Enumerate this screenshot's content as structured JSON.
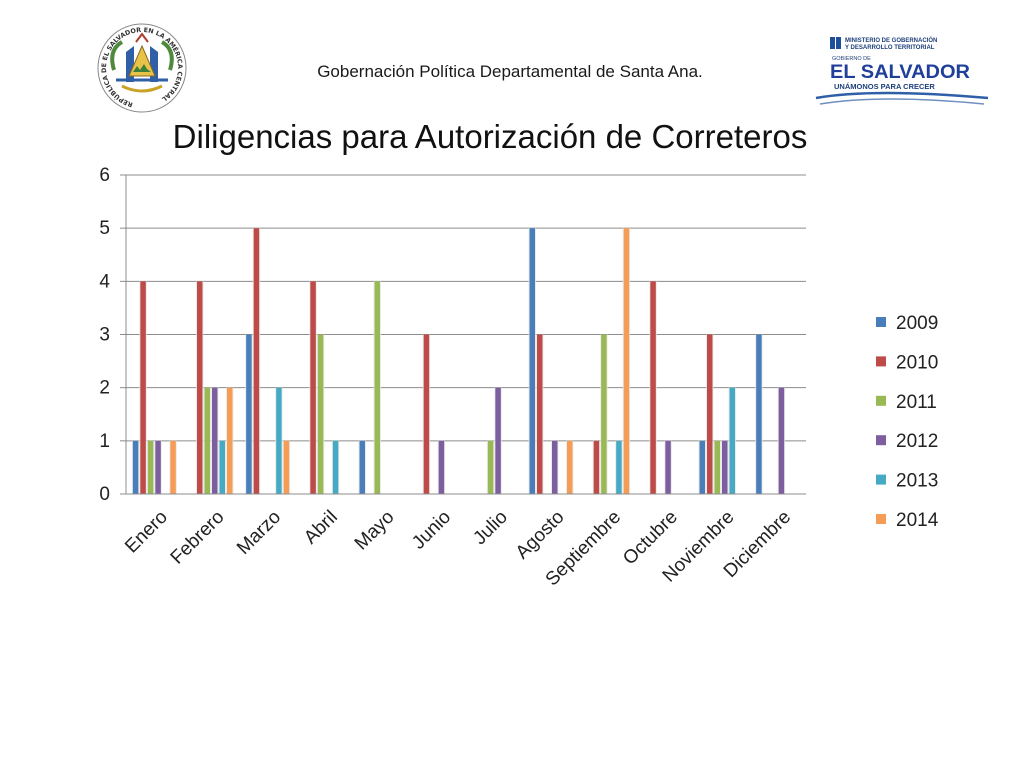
{
  "header": {
    "subtitle": "Gobernación Política Departamental de Santa Ana.",
    "seal_text": "REPÚBLICA DE EL SALVADOR EN LA AMÉRICA CENTRAL",
    "ministry_line1": "MINISTERIO DE GOBERNACIÓN",
    "ministry_line2": "Y DESARROLLO TERRITORIAL",
    "gov_label": "GOBIERNO DE",
    "country": "EL SALVADOR",
    "slogan": "UNÁMONOS PARA CRECER"
  },
  "chart_data": {
    "type": "bar",
    "title": "Diligencias para Autorización de Correteros",
    "categories": [
      "Enero",
      "Febrero",
      "Marzo",
      "Abril",
      "Mayo",
      "Junio",
      "Julio",
      "Agosto",
      "Septiembre",
      "Octubre",
      "Noviembre",
      "Diciembre"
    ],
    "series": [
      {
        "name": "2009",
        "color": "#4a7ebb",
        "values": [
          1,
          0,
          3,
          0,
          1,
          0,
          0,
          5,
          0,
          0,
          1,
          3
        ]
      },
      {
        "name": "2010",
        "color": "#be4b48",
        "values": [
          4,
          4,
          5,
          4,
          0,
          3,
          0,
          3,
          1,
          4,
          3,
          0
        ]
      },
      {
        "name": "2011",
        "color": "#98b954",
        "values": [
          1,
          2,
          0,
          3,
          4,
          0,
          1,
          0,
          3,
          0,
          1,
          0
        ]
      },
      {
        "name": "2012",
        "color": "#7d5fa0",
        "values": [
          1,
          2,
          0,
          0,
          0,
          1,
          2,
          1,
          0,
          1,
          1,
          2
        ]
      },
      {
        "name": "2013",
        "color": "#46aac5",
        "values": [
          0,
          1,
          2,
          1,
          0,
          0,
          0,
          0,
          1,
          0,
          2,
          0
        ]
      },
      {
        "name": "2014",
        "color": "#f59d56",
        "values": [
          1,
          2,
          1,
          0,
          0,
          0,
          0,
          1,
          5,
          0,
          0,
          0
        ]
      }
    ],
    "xlabel": "",
    "ylabel": "",
    "ylim": [
      0,
      6
    ],
    "yticks": [
      0,
      1,
      2,
      3,
      4,
      5,
      6
    ],
    "grid": true,
    "legend_position": "right"
  }
}
